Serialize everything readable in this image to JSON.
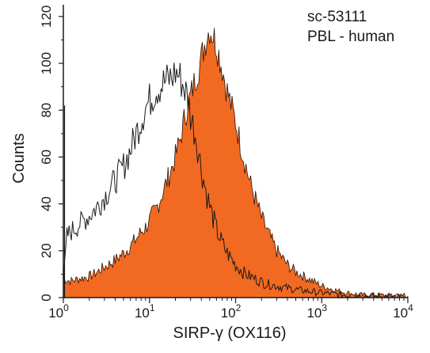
{
  "chart_data": {
    "type": "area",
    "annotations": [
      "sc-53111",
      "PBL - human"
    ],
    "xlabel_main": "SIRP-γ",
    "xlabel_suffix": "(OX116)",
    "ylabel": "Counts",
    "xscale": "log",
    "xlim": [
      1,
      10000
    ],
    "ylim": [
      0,
      125
    ],
    "xticks": [
      {
        "value": 1,
        "base": "10",
        "exp": "0"
      },
      {
        "value": 10,
        "base": "10",
        "exp": "1"
      },
      {
        "value": 100,
        "base": "10",
        "exp": "2"
      },
      {
        "value": 1000,
        "base": "10",
        "exp": "3"
      },
      {
        "value": 10000,
        "base": "10",
        "exp": "4"
      }
    ],
    "yticks": [
      "0",
      "20",
      "40",
      "60",
      "80",
      "100",
      "120"
    ],
    "grid": false,
    "series": [
      {
        "style": "filled",
        "color": "#f26a21",
        "points": [
          [
            1,
            8
          ],
          [
            1.2,
            7
          ],
          [
            1.5,
            8
          ],
          [
            2,
            9
          ],
          [
            2.5,
            11
          ],
          [
            3,
            13
          ],
          [
            4,
            16
          ],
          [
            5,
            19
          ],
          [
            6,
            22
          ],
          [
            7,
            25
          ],
          [
            8,
            28
          ],
          [
            9,
            30
          ],
          [
            10,
            33
          ],
          [
            12,
            38
          ],
          [
            15,
            47
          ],
          [
            18,
            55
          ],
          [
            20,
            60
          ],
          [
            23,
            68
          ],
          [
            26,
            78
          ],
          [
            30,
            86
          ],
          [
            35,
            95
          ],
          [
            40,
            102
          ],
          [
            45,
            110
          ],
          [
            50,
            115
          ],
          [
            55,
            112
          ],
          [
            60,
            108
          ],
          [
            70,
            98
          ],
          [
            80,
            88
          ],
          [
            100,
            75
          ],
          [
            120,
            62
          ],
          [
            150,
            48
          ],
          [
            200,
            34
          ],
          [
            250,
            26
          ],
          [
            300,
            20
          ],
          [
            400,
            14
          ],
          [
            500,
            11
          ],
          [
            700,
            8
          ],
          [
            1000,
            5
          ],
          [
            1500,
            3
          ],
          [
            2000,
            2
          ],
          [
            3000,
            1
          ],
          [
            5000,
            1
          ],
          [
            10000,
            0.5
          ]
        ]
      },
      {
        "style": "outline",
        "color": "#1a1a1a",
        "points": [
          [
            1,
            6
          ],
          [
            1.1,
            26
          ],
          [
            1.2,
            28
          ],
          [
            1.5,
            31
          ],
          [
            2,
            35
          ],
          [
            2.5,
            39
          ],
          [
            3,
            43
          ],
          [
            4,
            50
          ],
          [
            5,
            56
          ],
          [
            6,
            63
          ],
          [
            7,
            70
          ],
          [
            8,
            76
          ],
          [
            9,
            81
          ],
          [
            10,
            84
          ],
          [
            12,
            89
          ],
          [
            15,
            92
          ],
          [
            18,
            94
          ],
          [
            20,
            96
          ],
          [
            22,
            95
          ],
          [
            25,
            90
          ],
          [
            28,
            85
          ],
          [
            30,
            78
          ],
          [
            35,
            68
          ],
          [
            40,
            55
          ],
          [
            45,
            46
          ],
          [
            50,
            39
          ],
          [
            60,
            29
          ],
          [
            70,
            23
          ],
          [
            80,
            19
          ],
          [
            100,
            14
          ],
          [
            130,
            10
          ],
          [
            170,
            8
          ],
          [
            220,
            6
          ],
          [
            300,
            5
          ],
          [
            400,
            4
          ],
          [
            600,
            3
          ],
          [
            1000,
            2
          ],
          [
            2000,
            1
          ],
          [
            5000,
            0.5
          ],
          [
            10000,
            0.3
          ]
        ]
      }
    ]
  }
}
